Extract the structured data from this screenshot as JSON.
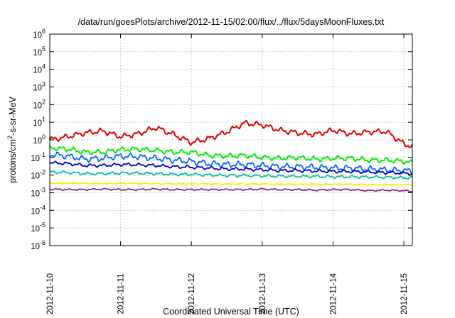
{
  "chart_data": {
    "type": "line",
    "title": "/data/run/goesPlots/archive/2012-11-15/02:00/flux/../flux/5daysMoonFluxes.txt",
    "xlabel": "Coordinated Universal Time (UTC)",
    "ylabel_base": "protons/cm",
    "ylabel_sup": "2",
    "ylabel_rest": "-s-sr-MeV",
    "yscale": "log",
    "ylim_exp": [
      -6,
      6
    ],
    "y_ticks": [
      {
        "base": "10",
        "exp": "-6",
        "e": -6
      },
      {
        "base": "10",
        "exp": "-5",
        "e": -5
      },
      {
        "base": "10",
        "exp": "-4",
        "e": -4
      },
      {
        "base": "10",
        "exp": "-3",
        "e": -3
      },
      {
        "base": "10",
        "exp": "-2",
        "e": -2
      },
      {
        "base": "10",
        "exp": "-1",
        "e": -1
      },
      {
        "base": "10",
        "exp": "0",
        "e": 0
      },
      {
        "base": "10",
        "exp": "1",
        "e": 1
      },
      {
        "base": "10",
        "exp": "2",
        "e": 2
      },
      {
        "base": "10",
        "exp": "3",
        "e": 3
      },
      {
        "base": "10",
        "exp": "4",
        "e": 4
      },
      {
        "base": "10",
        "exp": "5",
        "e": 5
      },
      {
        "base": "10",
        "exp": "6",
        "e": 6
      }
    ],
    "x_ticks": [
      "2012-11-10",
      "2012-11-11",
      "2012-11-12",
      "2012-11-13",
      "2012-11-14",
      "2012-11-15"
    ],
    "x_range_days": [
      0,
      5.12
    ],
    "grid": true,
    "series": [
      {
        "color": "#e00000",
        "x": [
          0,
          0.25,
          0.5,
          0.75,
          1.0,
          1.25,
          1.5,
          1.75,
          2.0,
          2.25,
          2.5,
          2.75,
          3.0,
          3.25,
          3.5,
          3.75,
          4.0,
          4.25,
          4.5,
          4.75,
          5.0,
          5.12
        ],
        "y": [
          1.0,
          1.5,
          2.5,
          3.2,
          1.5,
          2.2,
          5.0,
          2.0,
          0.7,
          1.2,
          2.8,
          9.0,
          7.0,
          3.5,
          2.5,
          2.0,
          3.5,
          2.2,
          2.8,
          3.0,
          0.6,
          0.4
        ]
      },
      {
        "color": "#00ee00",
        "x": [
          0,
          0.25,
          0.5,
          0.75,
          1.0,
          1.25,
          1.5,
          1.75,
          2.0,
          2.25,
          2.5,
          2.75,
          3.0,
          3.25,
          3.5,
          3.75,
          4.0,
          4.25,
          4.5,
          4.75,
          5.0,
          5.12
        ],
        "y": [
          0.35,
          0.3,
          0.2,
          0.2,
          0.28,
          0.3,
          0.25,
          0.2,
          0.2,
          0.13,
          0.12,
          0.13,
          0.1,
          0.09,
          0.1,
          0.08,
          0.09,
          0.09,
          0.07,
          0.07,
          0.06,
          0.05
        ]
      },
      {
        "color": "#0066ff",
        "x": [
          0,
          0.25,
          0.5,
          0.75,
          1.0,
          1.25,
          1.5,
          1.75,
          2.0,
          2.25,
          2.5,
          2.75,
          3.0,
          3.25,
          3.5,
          3.75,
          4.0,
          4.25,
          4.5,
          4.75,
          5.0,
          5.12
        ],
        "y": [
          0.15,
          0.12,
          0.08,
          0.09,
          0.12,
          0.11,
          0.09,
          0.07,
          0.06,
          0.045,
          0.04,
          0.04,
          0.035,
          0.03,
          0.03,
          0.028,
          0.025,
          0.025,
          0.022,
          0.02,
          0.018,
          0.017
        ]
      },
      {
        "color": "#0000cc",
        "x": [
          0,
          0.25,
          0.5,
          0.75,
          1.0,
          1.25,
          1.5,
          1.75,
          2.0,
          2.25,
          2.5,
          2.75,
          3.0,
          3.25,
          3.5,
          3.75,
          4.0,
          4.25,
          4.5,
          4.75,
          5.0,
          5.12
        ],
        "y": [
          0.05,
          0.045,
          0.035,
          0.035,
          0.04,
          0.038,
          0.035,
          0.03,
          0.028,
          0.025,
          0.022,
          0.022,
          0.02,
          0.018,
          0.018,
          0.017,
          0.016,
          0.016,
          0.015,
          0.014,
          0.013,
          0.012
        ]
      },
      {
        "color": "#00bfa0",
        "x": [
          0,
          0.25,
          0.5,
          0.75,
          1.0,
          1.25,
          1.5,
          1.75,
          2.0,
          2.25,
          2.5,
          2.75,
          3.0,
          3.25,
          3.5,
          3.75,
          4.0,
          4.25,
          4.5,
          4.75,
          5.0,
          5.12
        ],
        "y": [
          0.015,
          0.014,
          0.012,
          0.012,
          0.013,
          0.013,
          0.012,
          0.011,
          0.011,
          0.01,
          0.0095,
          0.0095,
          0.009,
          0.0088,
          0.0085,
          0.0085,
          0.008,
          0.008,
          0.0078,
          0.0075,
          0.007,
          0.007
        ]
      },
      {
        "color": "#ffee00",
        "x": [
          0,
          0.25,
          0.5,
          0.75,
          1.0,
          1.25,
          1.5,
          1.75,
          2.0,
          2.25,
          2.5,
          2.75,
          3.0,
          3.25,
          3.5,
          3.75,
          4.0,
          4.25,
          4.5,
          4.75,
          5.0,
          5.12
        ],
        "y": [
          0.0035,
          0.0034,
          0.0033,
          0.0033,
          0.0033,
          0.0033,
          0.0032,
          0.0032,
          0.0032,
          0.0031,
          0.0031,
          0.0031,
          0.0031,
          0.003,
          0.003,
          0.003,
          0.003,
          0.003,
          0.0029,
          0.0029,
          0.0029,
          0.0028
        ]
      },
      {
        "color": "#8b2a7a",
        "x": [
          0,
          0.25,
          0.5,
          0.75,
          1.0,
          1.25,
          1.5,
          1.75,
          2.0,
          2.25,
          2.5,
          2.75,
          3.0,
          3.25,
          3.5,
          3.75,
          4.0,
          4.25,
          4.5,
          4.75,
          5.0,
          5.12
        ],
        "y": [
          0.0016,
          0.0015,
          0.0015,
          0.0016,
          0.0015,
          0.0015,
          0.0016,
          0.0015,
          0.0015,
          0.0015,
          0.0015,
          0.0015,
          0.0016,
          0.0015,
          0.0015,
          0.0014,
          0.0015,
          0.0015,
          0.0013,
          0.0014,
          0.0013,
          0.0012
        ]
      }
    ]
  }
}
